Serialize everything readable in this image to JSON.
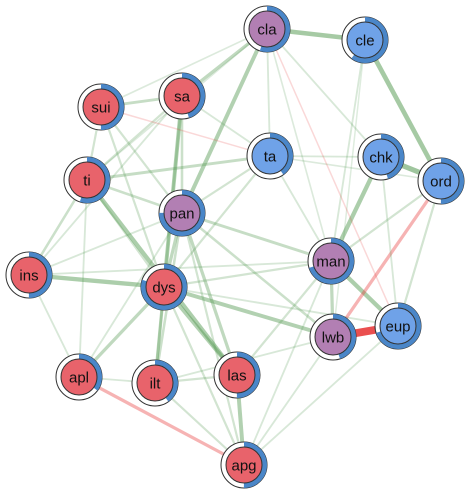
{
  "colors": {
    "group_red": "#e8636b",
    "group_purple": "#b27fb3",
    "group_blue": "#6fa2e8",
    "ring": "#4a86c8",
    "edge_positive": "#5c9e5a",
    "edge_negative": "#e83c3c"
  },
  "nodes": [
    {
      "id": "cla",
      "label": "cla",
      "group": "purple",
      "ring_fraction": 0.55
    },
    {
      "id": "cle",
      "label": "cle",
      "group": "blue",
      "ring_fraction": 0.6
    },
    {
      "id": "sui",
      "label": "sui",
      "group": "red",
      "ring_fraction": 0.5
    },
    {
      "id": "sa",
      "label": "sa",
      "group": "red",
      "ring_fraction": 0.45
    },
    {
      "id": "ta",
      "label": "ta",
      "group": "blue",
      "ring_fraction": 0.4
    },
    {
      "id": "chk",
      "label": "chk",
      "group": "blue",
      "ring_fraction": 0.45
    },
    {
      "id": "ti",
      "label": "ti",
      "group": "red",
      "ring_fraction": 0.55
    },
    {
      "id": "ord",
      "label": "ord",
      "group": "blue",
      "ring_fraction": 0.5
    },
    {
      "id": "pan",
      "label": "pan",
      "group": "purple",
      "ring_fraction": 0.75
    },
    {
      "id": "ins",
      "label": "ins",
      "group": "red",
      "ring_fraction": 0.5
    },
    {
      "id": "man",
      "label": "man",
      "group": "purple",
      "ring_fraction": 0.7
    },
    {
      "id": "dys",
      "label": "dys",
      "group": "red",
      "ring_fraction": 0.8
    },
    {
      "id": "lwb",
      "label": "lwb",
      "group": "purple",
      "ring_fraction": 0.45
    },
    {
      "id": "eup",
      "label": "eup",
      "group": "blue",
      "ring_fraction": 0.7
    },
    {
      "id": "apl",
      "label": "apl",
      "group": "red",
      "ring_fraction": 0.35
    },
    {
      "id": "ilt",
      "label": "ilt",
      "group": "red",
      "ring_fraction": 0.4
    },
    {
      "id": "las",
      "label": "las",
      "group": "red",
      "ring_fraction": 0.5
    },
    {
      "id": "apg",
      "label": "apg",
      "group": "red",
      "ring_fraction": 0.5
    }
  ],
  "edges": [
    {
      "from": "cla",
      "to": "cle",
      "weight": 0.55,
      "sign": "positive"
    },
    {
      "from": "cle",
      "to": "ord",
      "weight": 0.55,
      "sign": "positive"
    },
    {
      "from": "chk",
      "to": "ord",
      "weight": 0.6,
      "sign": "positive"
    },
    {
      "from": "chk",
      "to": "man",
      "weight": 0.5,
      "sign": "positive"
    },
    {
      "from": "cla",
      "to": "sa",
      "weight": 0.35,
      "sign": "positive"
    },
    {
      "from": "cla",
      "to": "pan",
      "weight": 0.45,
      "sign": "positive"
    },
    {
      "from": "cla",
      "to": "ta",
      "weight": 0.15,
      "sign": "positive"
    },
    {
      "from": "cla",
      "to": "chk",
      "weight": 0.15,
      "sign": "positive"
    },
    {
      "from": "cla",
      "to": "ti",
      "weight": 0.12,
      "sign": "positive"
    },
    {
      "from": "cla",
      "to": "sui",
      "weight": 0.12,
      "sign": "positive"
    },
    {
      "from": "cla",
      "to": "man",
      "weight": 0.12,
      "sign": "positive"
    },
    {
      "from": "cle",
      "to": "man",
      "weight": 0.15,
      "sign": "positive"
    },
    {
      "from": "cle",
      "to": "lwb",
      "weight": 0.1,
      "sign": "positive"
    },
    {
      "from": "sui",
      "to": "sa",
      "weight": 0.3,
      "sign": "positive"
    },
    {
      "from": "sui",
      "to": "ti",
      "weight": 0.2,
      "sign": "positive"
    },
    {
      "from": "sui",
      "to": "pan",
      "weight": 0.2,
      "sign": "positive"
    },
    {
      "from": "sui",
      "to": "dys",
      "weight": 0.2,
      "sign": "positive"
    },
    {
      "from": "sa",
      "to": "ti",
      "weight": 0.2,
      "sign": "positive"
    },
    {
      "from": "sa",
      "to": "ta",
      "weight": 0.15,
      "sign": "positive"
    },
    {
      "from": "sa",
      "to": "pan",
      "weight": 0.25,
      "sign": "positive"
    },
    {
      "from": "sa",
      "to": "dys",
      "weight": 0.45,
      "sign": "positive"
    },
    {
      "from": "sa",
      "to": "ins",
      "weight": 0.15,
      "sign": "positive"
    },
    {
      "from": "sa",
      "to": "ilt",
      "weight": 0.25,
      "sign": "positive"
    },
    {
      "from": "ta",
      "to": "ti",
      "weight": 0.3,
      "sign": "positive"
    },
    {
      "from": "ta",
      "to": "chk",
      "weight": 0.15,
      "sign": "positive"
    },
    {
      "from": "ta",
      "to": "pan",
      "weight": 0.2,
      "sign": "positive"
    },
    {
      "from": "ta",
      "to": "man",
      "weight": 0.15,
      "sign": "positive"
    },
    {
      "from": "ta",
      "to": "dys",
      "weight": 0.2,
      "sign": "positive"
    },
    {
      "from": "ta",
      "to": "ord",
      "weight": 0.12,
      "sign": "positive"
    },
    {
      "from": "ti",
      "to": "pan",
      "weight": 0.25,
      "sign": "positive"
    },
    {
      "from": "ti",
      "to": "dys",
      "weight": 0.2,
      "sign": "positive"
    },
    {
      "from": "ti",
      "to": "ins",
      "weight": 0.25,
      "sign": "positive"
    },
    {
      "from": "ti",
      "to": "las",
      "weight": 0.5,
      "sign": "positive"
    },
    {
      "from": "ti",
      "to": "apl",
      "weight": 0.15,
      "sign": "positive"
    },
    {
      "from": "pan",
      "to": "dys",
      "weight": 0.35,
      "sign": "positive"
    },
    {
      "from": "pan",
      "to": "man",
      "weight": 0.3,
      "sign": "positive"
    },
    {
      "from": "pan",
      "to": "lwb",
      "weight": 0.25,
      "sign": "positive"
    },
    {
      "from": "pan",
      "to": "las",
      "weight": 0.35,
      "sign": "positive"
    },
    {
      "from": "pan",
      "to": "ilt",
      "weight": 0.25,
      "sign": "positive"
    },
    {
      "from": "pan",
      "to": "apl",
      "weight": 0.15,
      "sign": "positive"
    },
    {
      "from": "pan",
      "to": "ins",
      "weight": 0.15,
      "sign": "positive"
    },
    {
      "from": "pan",
      "to": "apg",
      "weight": 0.2,
      "sign": "positive"
    },
    {
      "from": "ins",
      "to": "dys",
      "weight": 0.5,
      "sign": "positive"
    },
    {
      "from": "ins",
      "to": "man",
      "weight": 0.15,
      "sign": "positive"
    },
    {
      "from": "ins",
      "to": "apl",
      "weight": 0.15,
      "sign": "positive"
    },
    {
      "from": "dys",
      "to": "man",
      "weight": 0.2,
      "sign": "positive"
    },
    {
      "from": "dys",
      "to": "lwb",
      "weight": 0.45,
      "sign": "positive"
    },
    {
      "from": "dys",
      "to": "las",
      "weight": 0.45,
      "sign": "positive"
    },
    {
      "from": "dys",
      "to": "ilt",
      "weight": 0.35,
      "sign": "positive"
    },
    {
      "from": "dys",
      "to": "apl",
      "weight": 0.35,
      "sign": "positive"
    },
    {
      "from": "dys",
      "to": "apg",
      "weight": 0.2,
      "sign": "positive"
    },
    {
      "from": "dys",
      "to": "eup",
      "weight": 0.15,
      "sign": "positive"
    },
    {
      "from": "man",
      "to": "lwb",
      "weight": 0.35,
      "sign": "positive"
    },
    {
      "from": "man",
      "to": "eup",
      "weight": 0.5,
      "sign": "positive"
    },
    {
      "from": "man",
      "to": "ord",
      "weight": 0.2,
      "sign": "positive"
    },
    {
      "from": "man",
      "to": "las",
      "weight": 0.2,
      "sign": "positive"
    },
    {
      "from": "man",
      "to": "apg",
      "weight": 0.15,
      "sign": "positive"
    },
    {
      "from": "lwb",
      "to": "eup",
      "weight": 1.0,
      "sign": "negative"
    },
    {
      "from": "lwb",
      "to": "ord",
      "weight": 0.35,
      "sign": "negative"
    },
    {
      "from": "lwb",
      "to": "ilt",
      "weight": 0.15,
      "sign": "positive"
    },
    {
      "from": "lwb",
      "to": "apg",
      "weight": 0.15,
      "sign": "positive"
    },
    {
      "from": "eup",
      "to": "ord",
      "weight": 0.2,
      "sign": "positive"
    },
    {
      "from": "eup",
      "to": "apg",
      "weight": 0.15,
      "sign": "positive"
    },
    {
      "from": "eup",
      "to": "chk",
      "weight": 0.15,
      "sign": "positive"
    },
    {
      "from": "apl",
      "to": "apg",
      "weight": 0.35,
      "sign": "negative"
    },
    {
      "from": "apl",
      "to": "ilt",
      "weight": 0.15,
      "sign": "positive"
    },
    {
      "from": "ilt",
      "to": "las",
      "weight": 0.2,
      "sign": "positive"
    },
    {
      "from": "ilt",
      "to": "apg",
      "weight": 0.2,
      "sign": "positive"
    },
    {
      "from": "las",
      "to": "apg",
      "weight": 0.45,
      "sign": "positive"
    },
    {
      "from": "sui",
      "to": "ta",
      "weight": 0.1,
      "sign": "negative"
    },
    {
      "from": "cla",
      "to": "eup",
      "weight": 0.1,
      "sign": "negative"
    }
  ]
}
